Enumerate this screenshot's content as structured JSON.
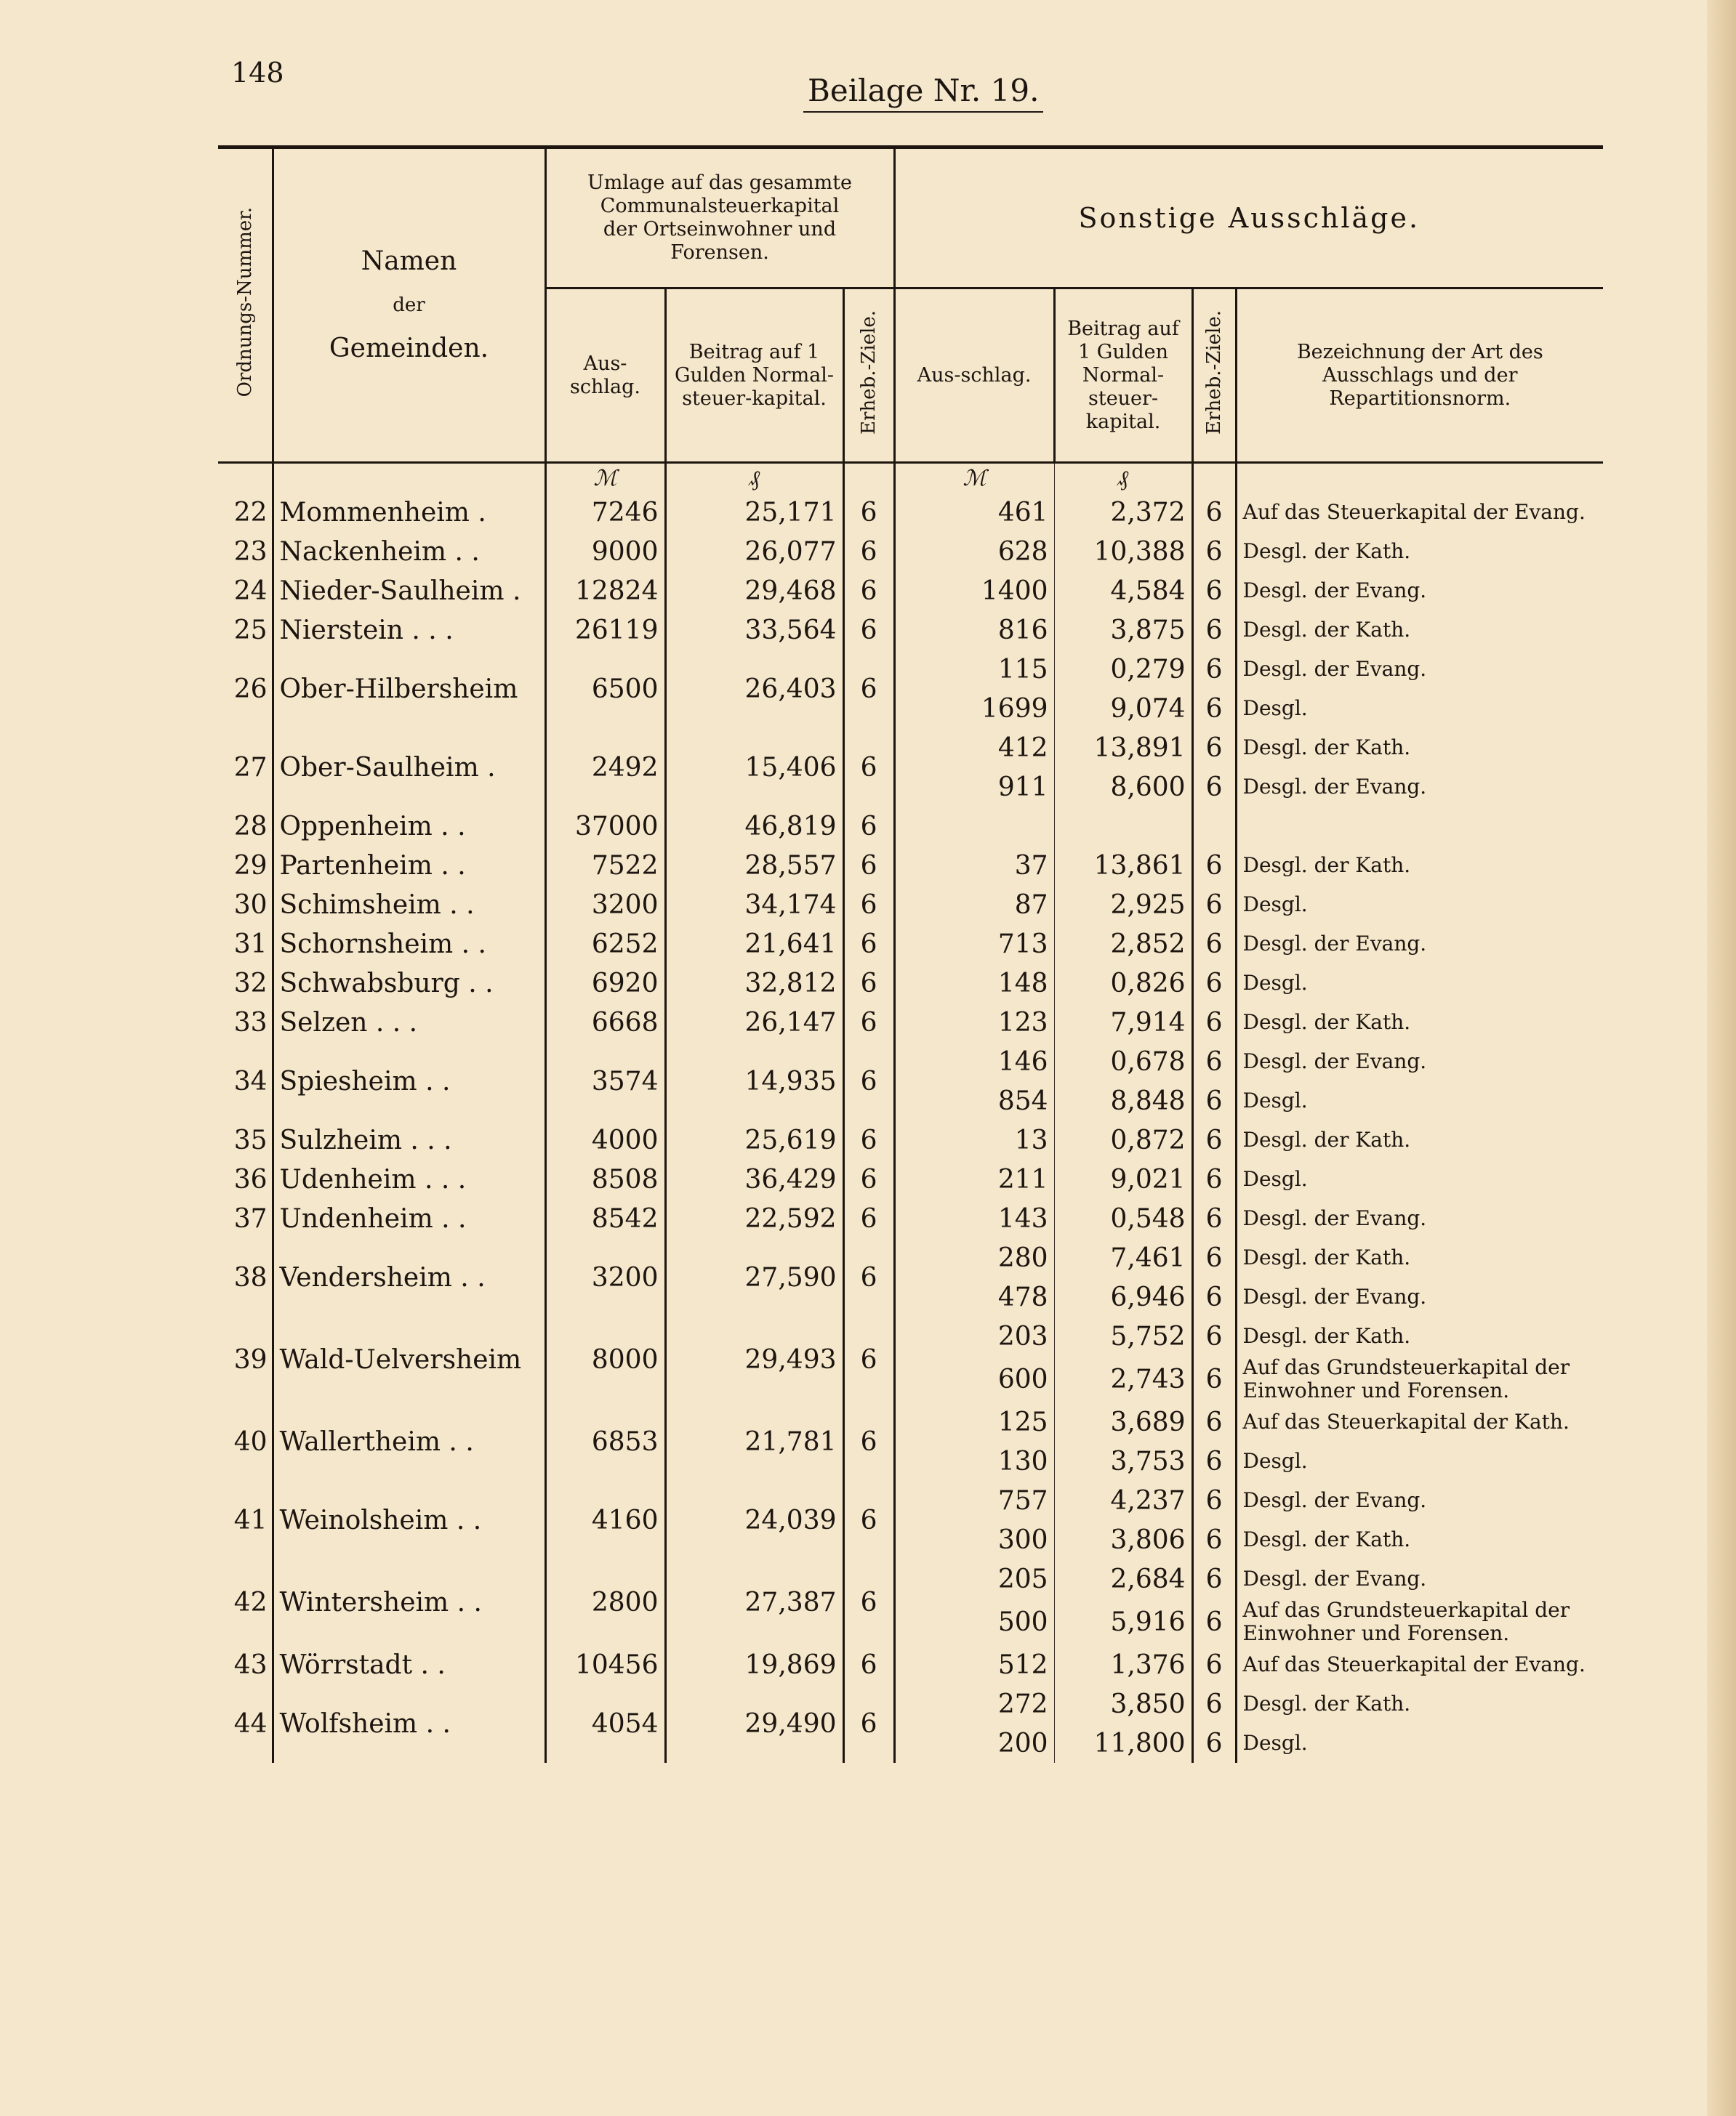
{
  "page_number": "148",
  "title": "Beilage Nr. 19.",
  "header": {
    "ordnungs_nummer": "Ordnungs-Nummer.",
    "namen": [
      "Namen",
      "der",
      "Gemeinden."
    ],
    "umlage": "Umlage auf das gesammte Communalsteuerkapital der Ortseinwohner und Forensen.",
    "sonstige": "Sonstige Ausschläge.",
    "ausschlag": "Aus-schlag.",
    "beitrag": "Beitrag auf 1 Gulden Normal-steuer-kapital.",
    "erheb_ziele": "Erheb.-Ziele.",
    "bezeichnung": "Bezeichnung der Art des Ausschlags und der Repartitionsnorm.",
    "unit_mark": "ℳ",
    "unit_pf": "₰"
  },
  "rows": [
    {
      "nr": "22",
      "name": "Mommenheim .",
      "aus": "7246",
      "beitrag": "25,171",
      "ziele": "6",
      "sonstige": [
        {
          "aus": "461",
          "beitrag": "2,372",
          "ziele": "6",
          "desc": "Auf das Steuerkapital der Evang."
        }
      ]
    },
    {
      "nr": "23",
      "name": "Nackenheim . .",
      "aus": "9000",
      "beitrag": "26,077",
      "ziele": "6",
      "sonstige": [
        {
          "aus": "628",
          "beitrag": "10,388",
          "ziele": "6",
          "desc": "Desgl. der Kath."
        }
      ]
    },
    {
      "nr": "24",
      "name": "Nieder-Saulheim .",
      "aus": "12824",
      "beitrag": "29,468",
      "ziele": "6",
      "sonstige": [
        {
          "aus": "1400",
          "beitrag": "4,584",
          "ziele": "6",
          "desc": "Desgl. der Evang."
        }
      ]
    },
    {
      "nr": "25",
      "name": "Nierstein . . .",
      "aus": "26119",
      "beitrag": "33,564",
      "ziele": "6",
      "sonstige": [
        {
          "aus": "816",
          "beitrag": "3,875",
          "ziele": "6",
          "desc": "Desgl. der Kath."
        }
      ]
    },
    {
      "nr": "26",
      "name": "Ober-Hilbersheim",
      "aus": "6500",
      "beitrag": "26,403",
      "ziele": "6",
      "sonstige": [
        {
          "aus": "115",
          "beitrag": "0,279",
          "ziele": "6",
          "desc": "Desgl. der Evang."
        },
        {
          "aus": "1699",
          "beitrag": "9,074",
          "ziele": "6",
          "desc": "Desgl."
        }
      ]
    },
    {
      "nr": "27",
      "name": "Ober-Saulheim .",
      "aus": "2492",
      "beitrag": "15,406",
      "ziele": "6",
      "sonstige": [
        {
          "aus": "412",
          "beitrag": "13,891",
          "ziele": "6",
          "desc": "Desgl. der Kath."
        },
        {
          "aus": "911",
          "beitrag": "8,600",
          "ziele": "6",
          "desc": "Desgl. der Evang."
        }
      ]
    },
    {
      "nr": "28",
      "name": "Oppenheim . .",
      "aus": "37000",
      "beitrag": "46,819",
      "ziele": "6",
      "sonstige": []
    },
    {
      "nr": "29",
      "name": "Partenheim . .",
      "aus": "7522",
      "beitrag": "28,557",
      "ziele": "6",
      "sonstige": [
        {
          "aus": "37",
          "beitrag": "13,861",
          "ziele": "6",
          "desc": "Desgl. der Kath."
        }
      ]
    },
    {
      "nr": "30",
      "name": "Schimsheim . .",
      "aus": "3200",
      "beitrag": "34,174",
      "ziele": "6",
      "sonstige": [
        {
          "aus": "87",
          "beitrag": "2,925",
          "ziele": "6",
          "desc": "Desgl."
        }
      ]
    },
    {
      "nr": "31",
      "name": "Schornsheim . .",
      "aus": "6252",
      "beitrag": "21,641",
      "ziele": "6",
      "sonstige": [
        {
          "aus": "713",
          "beitrag": "2,852",
          "ziele": "6",
          "desc": "Desgl. der Evang."
        }
      ]
    },
    {
      "nr": "32",
      "name": "Schwabsburg . .",
      "aus": "6920",
      "beitrag": "32,812",
      "ziele": "6",
      "sonstige": [
        {
          "aus": "148",
          "beitrag": "0,826",
          "ziele": "6",
          "desc": "Desgl."
        }
      ]
    },
    {
      "nr": "33",
      "name": "Selzen . . .",
      "aus": "6668",
      "beitrag": "26,147",
      "ziele": "6",
      "sonstige": [
        {
          "aus": "123",
          "beitrag": "7,914",
          "ziele": "6",
          "desc": "Desgl. der Kath."
        }
      ]
    },
    {
      "nr": "34",
      "name": "Spiesheim . .",
      "aus": "3574",
      "beitrag": "14,935",
      "ziele": "6",
      "sonstige": [
        {
          "aus": "146",
          "beitrag": "0,678",
          "ziele": "6",
          "desc": "Desgl. der Evang."
        },
        {
          "aus": "854",
          "beitrag": "8,848",
          "ziele": "6",
          "desc": "Desgl."
        }
      ]
    },
    {
      "nr": "35",
      "name": "Sulzheim . . .",
      "aus": "4000",
      "beitrag": "25,619",
      "ziele": "6",
      "sonstige": [
        {
          "aus": "13",
          "beitrag": "0,872",
          "ziele": "6",
          "desc": "Desgl. der Kath."
        }
      ]
    },
    {
      "nr": "36",
      "name": "Udenheim . . .",
      "aus": "8508",
      "beitrag": "36,429",
      "ziele": "6",
      "sonstige": [
        {
          "aus": "211",
          "beitrag": "9,021",
          "ziele": "6",
          "desc": "Desgl."
        }
      ]
    },
    {
      "nr": "37",
      "name": "Undenheim . .",
      "aus": "8542",
      "beitrag": "22,592",
      "ziele": "6",
      "sonstige": [
        {
          "aus": "143",
          "beitrag": "0,548",
          "ziele": "6",
          "desc": "Desgl. der Evang."
        }
      ]
    },
    {
      "nr": "38",
      "name": "Vendersheim . .",
      "aus": "3200",
      "beitrag": "27,590",
      "ziele": "6",
      "sonstige": [
        {
          "aus": "280",
          "beitrag": "7,461",
          "ziele": "6",
          "desc": "Desgl. der Kath."
        },
        {
          "aus": "478",
          "beitrag": "6,946",
          "ziele": "6",
          "desc": "Desgl. der Evang."
        }
      ]
    },
    {
      "nr": "39",
      "name": "Wald-Uelversheim",
      "aus": "8000",
      "beitrag": "29,493",
      "ziele": "6",
      "sonstige": [
        {
          "aus": "203",
          "beitrag": "5,752",
          "ziele": "6",
          "desc": "Desgl. der Kath."
        },
        {
          "aus": "600",
          "beitrag": "2,743",
          "ziele": "6",
          "desc": "Auf das Grundsteuerkapital der Einwohner und Forensen."
        }
      ]
    },
    {
      "nr": "40",
      "name": "Wallertheim . .",
      "aus": "6853",
      "beitrag": "21,781",
      "ziele": "6",
      "sonstige": [
        {
          "aus": "125",
          "beitrag": "3,689",
          "ziele": "6",
          "desc": "Auf das Steuerkapital der Kath."
        },
        {
          "aus": "130",
          "beitrag": "3,753",
          "ziele": "6",
          "desc": "Desgl."
        }
      ]
    },
    {
      "nr": "41",
      "name": "Weinolsheim . .",
      "aus": "4160",
      "beitrag": "24,039",
      "ziele": "6",
      "sonstige": [
        {
          "aus": "757",
          "beitrag": "4,237",
          "ziele": "6",
          "desc": "Desgl. der Evang."
        },
        {
          "aus": "300",
          "beitrag": "3,806",
          "ziele": "6",
          "desc": "Desgl. der Kath."
        }
      ]
    },
    {
      "nr": "42",
      "name": "Wintersheim . .",
      "aus": "2800",
      "beitrag": "27,387",
      "ziele": "6",
      "sonstige": [
        {
          "aus": "205",
          "beitrag": "2,684",
          "ziele": "6",
          "desc": "Desgl. der Evang."
        },
        {
          "aus": "500",
          "beitrag": "5,916",
          "ziele": "6",
          "desc": "Auf das Grundsteuerkapital der Einwohner und Forensen."
        }
      ]
    },
    {
      "nr": "43",
      "name": "Wörrstadt . .",
      "aus": "10456",
      "beitrag": "19,869",
      "ziele": "6",
      "sonstige": [
        {
          "aus": "512",
          "beitrag": "1,376",
          "ziele": "6",
          "desc": "Auf das Steuerkapital der Evang."
        }
      ]
    },
    {
      "nr": "44",
      "name": "Wolfsheim . .",
      "aus": "4054",
      "beitrag": "29,490",
      "ziele": "6",
      "sonstige": [
        {
          "aus": "272",
          "beitrag": "3,850",
          "ziele": "6",
          "desc": "Desgl. der Kath."
        },
        {
          "aus": "200",
          "beitrag": "11,800",
          "ziele": "6",
          "desc": "Desgl."
        }
      ]
    }
  ]
}
